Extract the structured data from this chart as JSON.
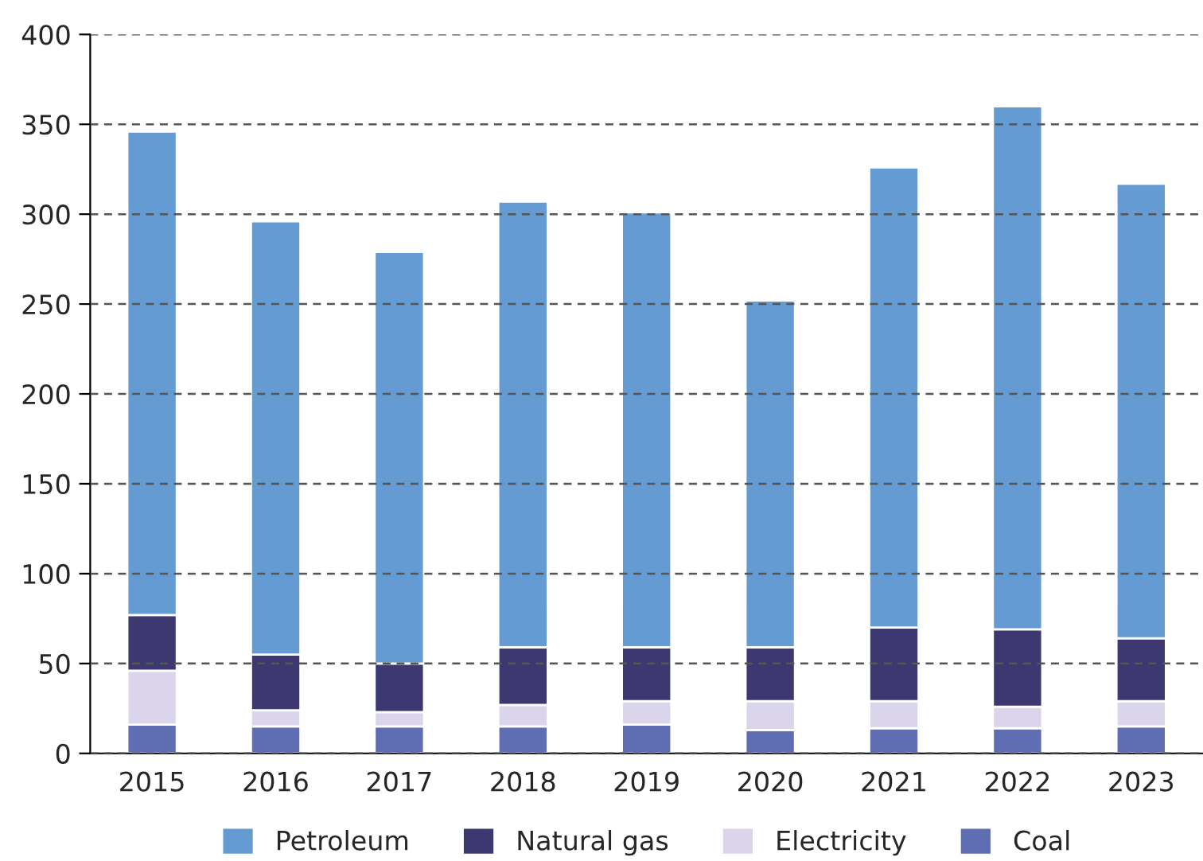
{
  "chart_data": {
    "type": "bar",
    "stacked": true,
    "categories": [
      "2015",
      "2016",
      "2017",
      "2018",
      "2019",
      "2020",
      "2021",
      "2022",
      "2023"
    ],
    "series": [
      {
        "name": "Coal",
        "color": "#5f6db3",
        "values": [
          16,
          15,
          15,
          15,
          16,
          13,
          14,
          14,
          15
        ]
      },
      {
        "name": "Electricity",
        "color": "#dad5ea",
        "values": [
          30,
          9,
          8,
          12,
          13,
          16,
          15,
          12,
          14
        ]
      },
      {
        "name": "Natural gas",
        "color": "#3d3870",
        "values": [
          31,
          31,
          27,
          32,
          30,
          30,
          41,
          43,
          35
        ]
      },
      {
        "name": "Petroleum",
        "color": "#659bd3",
        "values": [
          269,
          241,
          229,
          248,
          242,
          193,
          256,
          291,
          253
        ]
      }
    ],
    "ylim": [
      0,
      400
    ],
    "yticks": [
      0,
      50,
      100,
      150,
      200,
      250,
      300,
      350,
      400
    ],
    "grid": "y",
    "legend": "bottom"
  }
}
